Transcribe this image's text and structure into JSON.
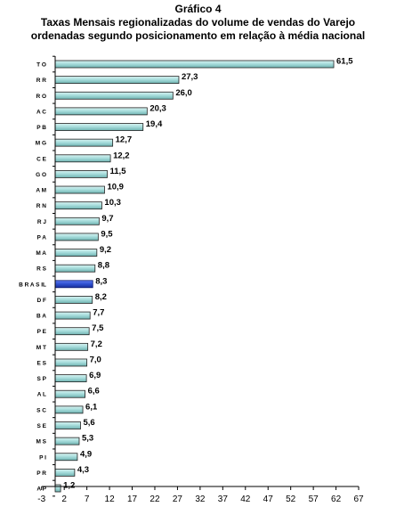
{
  "header": {
    "title": "Gráfico 4",
    "subtitle_line1": "Taxas Mensais regionalizadas do volume de vendas do Varejo",
    "subtitle_line2": "ordenadas segundo posicionamento em relação à média nacional"
  },
  "chart_data": {
    "type": "bar",
    "orientation": "horizontal",
    "title": "Gráfico 4",
    "subtitle": "Taxas Mensais regionalizadas do volume de vendas do Varejo ordenadas segundo posicionamento em relação à média nacional",
    "xlabel": "",
    "ylabel": "",
    "categories": [
      "TO",
      "RR",
      "RO",
      "AC",
      "PB",
      "MG",
      "CE",
      "GO",
      "AM",
      "RN",
      "RJ",
      "PA",
      "MA",
      "RS",
      "BRASIL",
      "DF",
      "BA",
      "PE",
      "MT",
      "ES",
      "SP",
      "AL",
      "SC",
      "SE",
      "MS",
      "PI",
      "PR",
      "AP"
    ],
    "values": [
      61.5,
      27.3,
      26.0,
      20.3,
      19.4,
      12.7,
      12.2,
      11.5,
      10.9,
      10.3,
      9.7,
      9.5,
      9.2,
      8.8,
      8.3,
      8.2,
      7.7,
      7.5,
      7.2,
      7.0,
      6.9,
      6.6,
      6.1,
      5.6,
      5.3,
      4.9,
      4.3,
      1.2
    ],
    "value_labels": [
      "61,5",
      "27,3",
      "26,0",
      "20,3",
      "19,4",
      "12,7",
      "12,2",
      "11,5",
      "10,9",
      "10,3",
      "9,7",
      "9,5",
      "9,2",
      "8,8",
      "8,3",
      "8,2",
      "7,7",
      "7,5",
      "7,2",
      "7,0",
      "6,9",
      "6,6",
      "6,1",
      "5,6",
      "5,3",
      "4,9",
      "4,3",
      "1,2"
    ],
    "category_labels": [
      "T O",
      "R R",
      "R O",
      "A C",
      "P B",
      "M G",
      "C E",
      "G O",
      "A M",
      "R N",
      "R J",
      "P A",
      "M A",
      "R S",
      "B R A S IL",
      "D F",
      "B A",
      "P E",
      "M T",
      "E S",
      "S P",
      "A L",
      "S C",
      "S E",
      "M S",
      "P I",
      "P R",
      "A P"
    ],
    "highlight_category": "BRASIL",
    "x_ticks": [
      -3,
      2,
      7,
      12,
      17,
      22,
      27,
      32,
      37,
      42,
      47,
      52,
      57,
      62,
      67
    ],
    "xlim": [
      -3,
      67
    ],
    "grid": false,
    "legend": "none",
    "colors": {
      "bar": "#a9dedd",
      "bar_edge": "#222222",
      "highlight_bar": "#2f4fd0",
      "highlight_edge": "#0a1a70",
      "axis": "#000000"
    }
  }
}
